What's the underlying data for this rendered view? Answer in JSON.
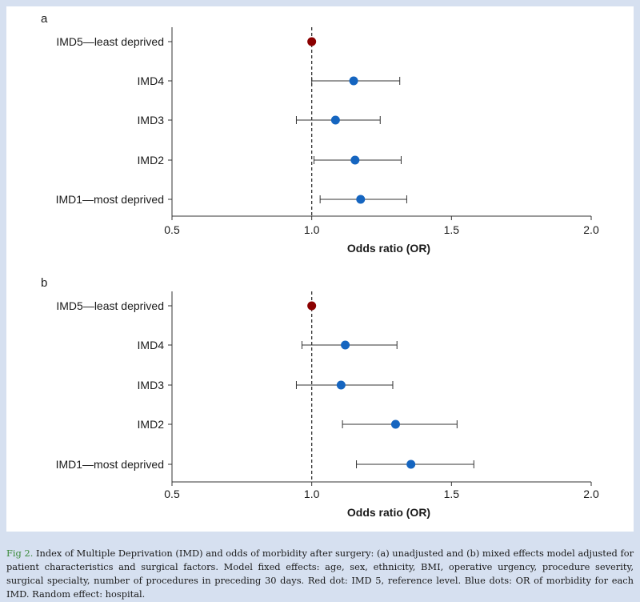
{
  "chart_data": [
    {
      "type": "forest",
      "panel_label": "a",
      "xlabel": "Odds ratio (OR)",
      "xlim": [
        0.5,
        2.0
      ],
      "xticks": [
        "0.5",
        "1.0",
        "1.5",
        "2.0"
      ],
      "reference_line": 1.0,
      "categories": [
        "IMD5—least deprived",
        "IMD4",
        "IMD3",
        "IMD2",
        "IMD1—most deprived"
      ],
      "or": [
        1.0,
        1.15,
        1.085,
        1.155,
        1.175
      ],
      "ci_low": [
        null,
        1.0,
        0.945,
        1.008,
        1.03
      ],
      "ci_high": [
        null,
        1.315,
        1.245,
        1.32,
        1.34
      ],
      "is_reference": [
        true,
        false,
        false,
        false,
        false
      ]
    },
    {
      "type": "forest",
      "panel_label": "b",
      "xlabel": "Odds ratio (OR)",
      "xlim": [
        0.5,
        2.0
      ],
      "xticks": [
        "0.5",
        "1.0",
        "1.5",
        "2.0"
      ],
      "reference_line": 1.0,
      "categories": [
        "IMD5—least deprived",
        "IMD4",
        "IMD3",
        "IMD2",
        "IMD1—most deprived"
      ],
      "or": [
        1.0,
        1.12,
        1.105,
        1.3,
        1.355
      ],
      "ci_low": [
        null,
        0.965,
        0.945,
        1.11,
        1.16
      ],
      "ci_high": [
        null,
        1.305,
        1.29,
        1.52,
        1.58
      ],
      "is_reference": [
        true,
        false,
        false,
        false,
        false
      ]
    }
  ],
  "colors": {
    "reference_dot": "#8b0000",
    "estimate_dot": "#1565c0",
    "whisker": "#333333"
  },
  "caption": {
    "label": "Fig 2.",
    "text": "Index of Multiple Deprivation (IMD) and odds of morbidity after surgery: (a) unadjusted and (b) mixed effects model adjusted for patient characteristics and surgical factors. Model fixed effects: age, sex, ethnicity, BMI, operative urgency, procedure severity, surgical specialty, number of procedures in preceding 30 days. Red dot: IMD 5, reference level. Blue dots: OR of morbidity for each IMD. Random effect: hospital."
  }
}
